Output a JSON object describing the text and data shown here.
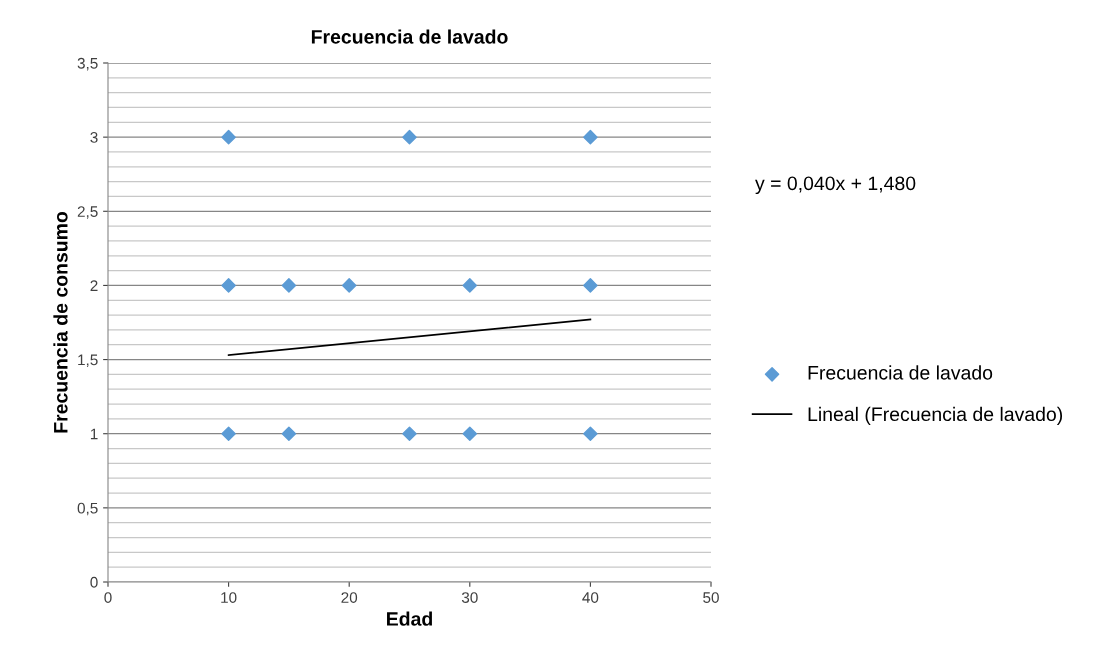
{
  "chart_data": {
    "type": "scatter",
    "title": "Frecuencia de lavado",
    "xlabel": "Edad",
    "ylabel": "Frecuencia de consumo",
    "xlim": [
      0,
      50
    ],
    "xticks": [
      0,
      10,
      20,
      30,
      40,
      50
    ],
    "ylim": [
      0,
      3.5
    ],
    "yticks": [
      {
        "value": 0,
        "label": "0"
      },
      {
        "value": 0.1,
        "label": null
      },
      {
        "value": 0.2,
        "label": null
      },
      {
        "value": 0.3,
        "label": null
      },
      {
        "value": 0.4,
        "label": null
      },
      {
        "value": 0.5,
        "label": "0,5"
      },
      {
        "value": 0.6,
        "label": null
      },
      {
        "value": 0.7,
        "label": null
      },
      {
        "value": 0.8,
        "label": null
      },
      {
        "value": 0.9,
        "label": null
      },
      {
        "value": 1,
        "label": "1"
      },
      {
        "value": 1.1,
        "label": null
      },
      {
        "value": 1.2,
        "label": null
      },
      {
        "value": 1.3,
        "label": null
      },
      {
        "value": 1.4,
        "label": null
      },
      {
        "value": 1.5,
        "label": "1,5"
      },
      {
        "value": 1.6,
        "label": null
      },
      {
        "value": 1.7,
        "label": null
      },
      {
        "value": 1.8,
        "label": null
      },
      {
        "value": 1.9,
        "label": null
      },
      {
        "value": 2,
        "label": "2"
      },
      {
        "value": 2.1,
        "label": null
      },
      {
        "value": 2.2,
        "label": null
      },
      {
        "value": 2.3,
        "label": null
      },
      {
        "value": 2.4,
        "label": null
      },
      {
        "value": 2.5,
        "label": "2,5"
      },
      {
        "value": 2.6,
        "label": null
      },
      {
        "value": 2.7,
        "label": null
      },
      {
        "value": 2.8,
        "label": null
      },
      {
        "value": 2.9,
        "label": null
      },
      {
        "value": 3,
        "label": "3"
      },
      {
        "value": 3.1,
        "label": null
      },
      {
        "value": 3.2,
        "label": null
      },
      {
        "value": 3.3,
        "label": null
      },
      {
        "value": 3.4,
        "label": null
      },
      {
        "value": 3.5,
        "label": "3,5"
      }
    ],
    "grid": "y",
    "legend": "right",
    "annotations": [
      "y = 0,040x + 1,480"
    ],
    "series": [
      {
        "name": "Frecuencia de lavado",
        "marker": "diamond",
        "color": "#5b9bd5",
        "x": [
          10,
          25,
          40,
          10,
          15,
          20,
          30,
          40,
          10,
          15,
          25,
          30,
          40
        ],
        "values": [
          3,
          3,
          3,
          2,
          2,
          2,
          2,
          2,
          1,
          1,
          1,
          1,
          1
        ]
      },
      {
        "name": "Lineal (Frecuencia de lavado)",
        "type": "line",
        "marker": "none",
        "color": "#000000",
        "x": [
          10,
          40
        ],
        "values": [
          1.53,
          1.77
        ]
      }
    ]
  }
}
